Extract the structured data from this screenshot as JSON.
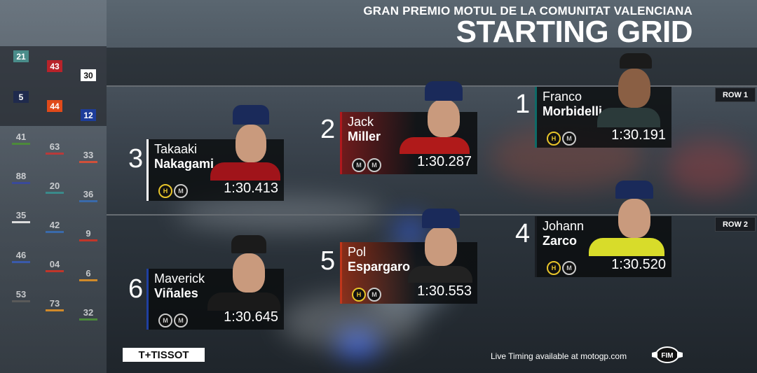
{
  "header": {
    "event": "GRAN PREMIO MOTUL DE LA COMUNITAT VALENCIANA",
    "title": "STARTING GRID"
  },
  "rows": [
    {
      "label": "ROW 1"
    },
    {
      "label": "ROW 2"
    }
  ],
  "riders": [
    {
      "position": "1",
      "first": "Franco",
      "last": "Morbidelli",
      "time": "1:30.191",
      "tyres": [
        "H",
        "M"
      ],
      "accent": "#0e6b67"
    },
    {
      "position": "2",
      "first": "Jack",
      "last": "Miller",
      "time": "1:30.287",
      "tyres": [
        "M",
        "M"
      ],
      "accent": "#b0181d"
    },
    {
      "position": "3",
      "first": "Takaaki",
      "last": "Nakagami",
      "time": "1:30.413",
      "tyres": [
        "H",
        "M"
      ],
      "accent": "#ffffff"
    },
    {
      "position": "4",
      "first": "Johann",
      "last": "Zarco",
      "time": "1:30.520",
      "tyres": [
        "H",
        "M"
      ],
      "accent": "#1a1d22"
    },
    {
      "position": "5",
      "first": "Pol",
      "last": "Espargaro",
      "time": "1:30.553",
      "tyres": [
        "H",
        "M"
      ],
      "accent": "#c0361b"
    },
    {
      "position": "6",
      "first": "Maverick",
      "last": "Viñales",
      "time": "1:30.645",
      "tyres": [
        "M",
        "M"
      ],
      "accent": "#1f3fa0"
    }
  ],
  "side_numbers": {
    "top": [
      {
        "n": "21",
        "color": "#4a8c8a"
      },
      {
        "n": "43",
        "color": "#b8232a"
      },
      {
        "n": "30",
        "color": "#ffffff"
      },
      {
        "n": "5",
        "color": "#1f2a4d"
      },
      {
        "n": "44",
        "color": "#e04a1a"
      },
      {
        "n": "12",
        "color": "#1d3d9a"
      }
    ],
    "grid": [
      {
        "n": "41",
        "color": "#4c8a3a"
      },
      {
        "n": "63",
        "color": "#b83a3a"
      },
      {
        "n": "33",
        "color": "#d0503a"
      },
      {
        "n": "88",
        "color": "#3a4a9a"
      },
      {
        "n": "20",
        "color": "#3a8a8a"
      },
      {
        "n": "36",
        "color": "#3a6aaa"
      },
      {
        "n": "35",
        "color": "#dddddd"
      },
      {
        "n": "42",
        "color": "#3a6aaa"
      },
      {
        "n": "9",
        "color": "#c0362a"
      },
      {
        "n": "46",
        "color": "#3a5aaa"
      },
      {
        "n": "04",
        "color": "#c0362a"
      },
      {
        "n": "6",
        "color": "#d08a2a"
      },
      {
        "n": "53",
        "color": "#5a5a5a"
      },
      {
        "n": "73",
        "color": "#d08a2a"
      },
      {
        "n": "32",
        "color": "#4c8a3a"
      }
    ]
  },
  "footer": {
    "sponsor": "T+TISSOT",
    "live_timing": "Live Timing available at motogp.com",
    "fim": "FIM"
  }
}
